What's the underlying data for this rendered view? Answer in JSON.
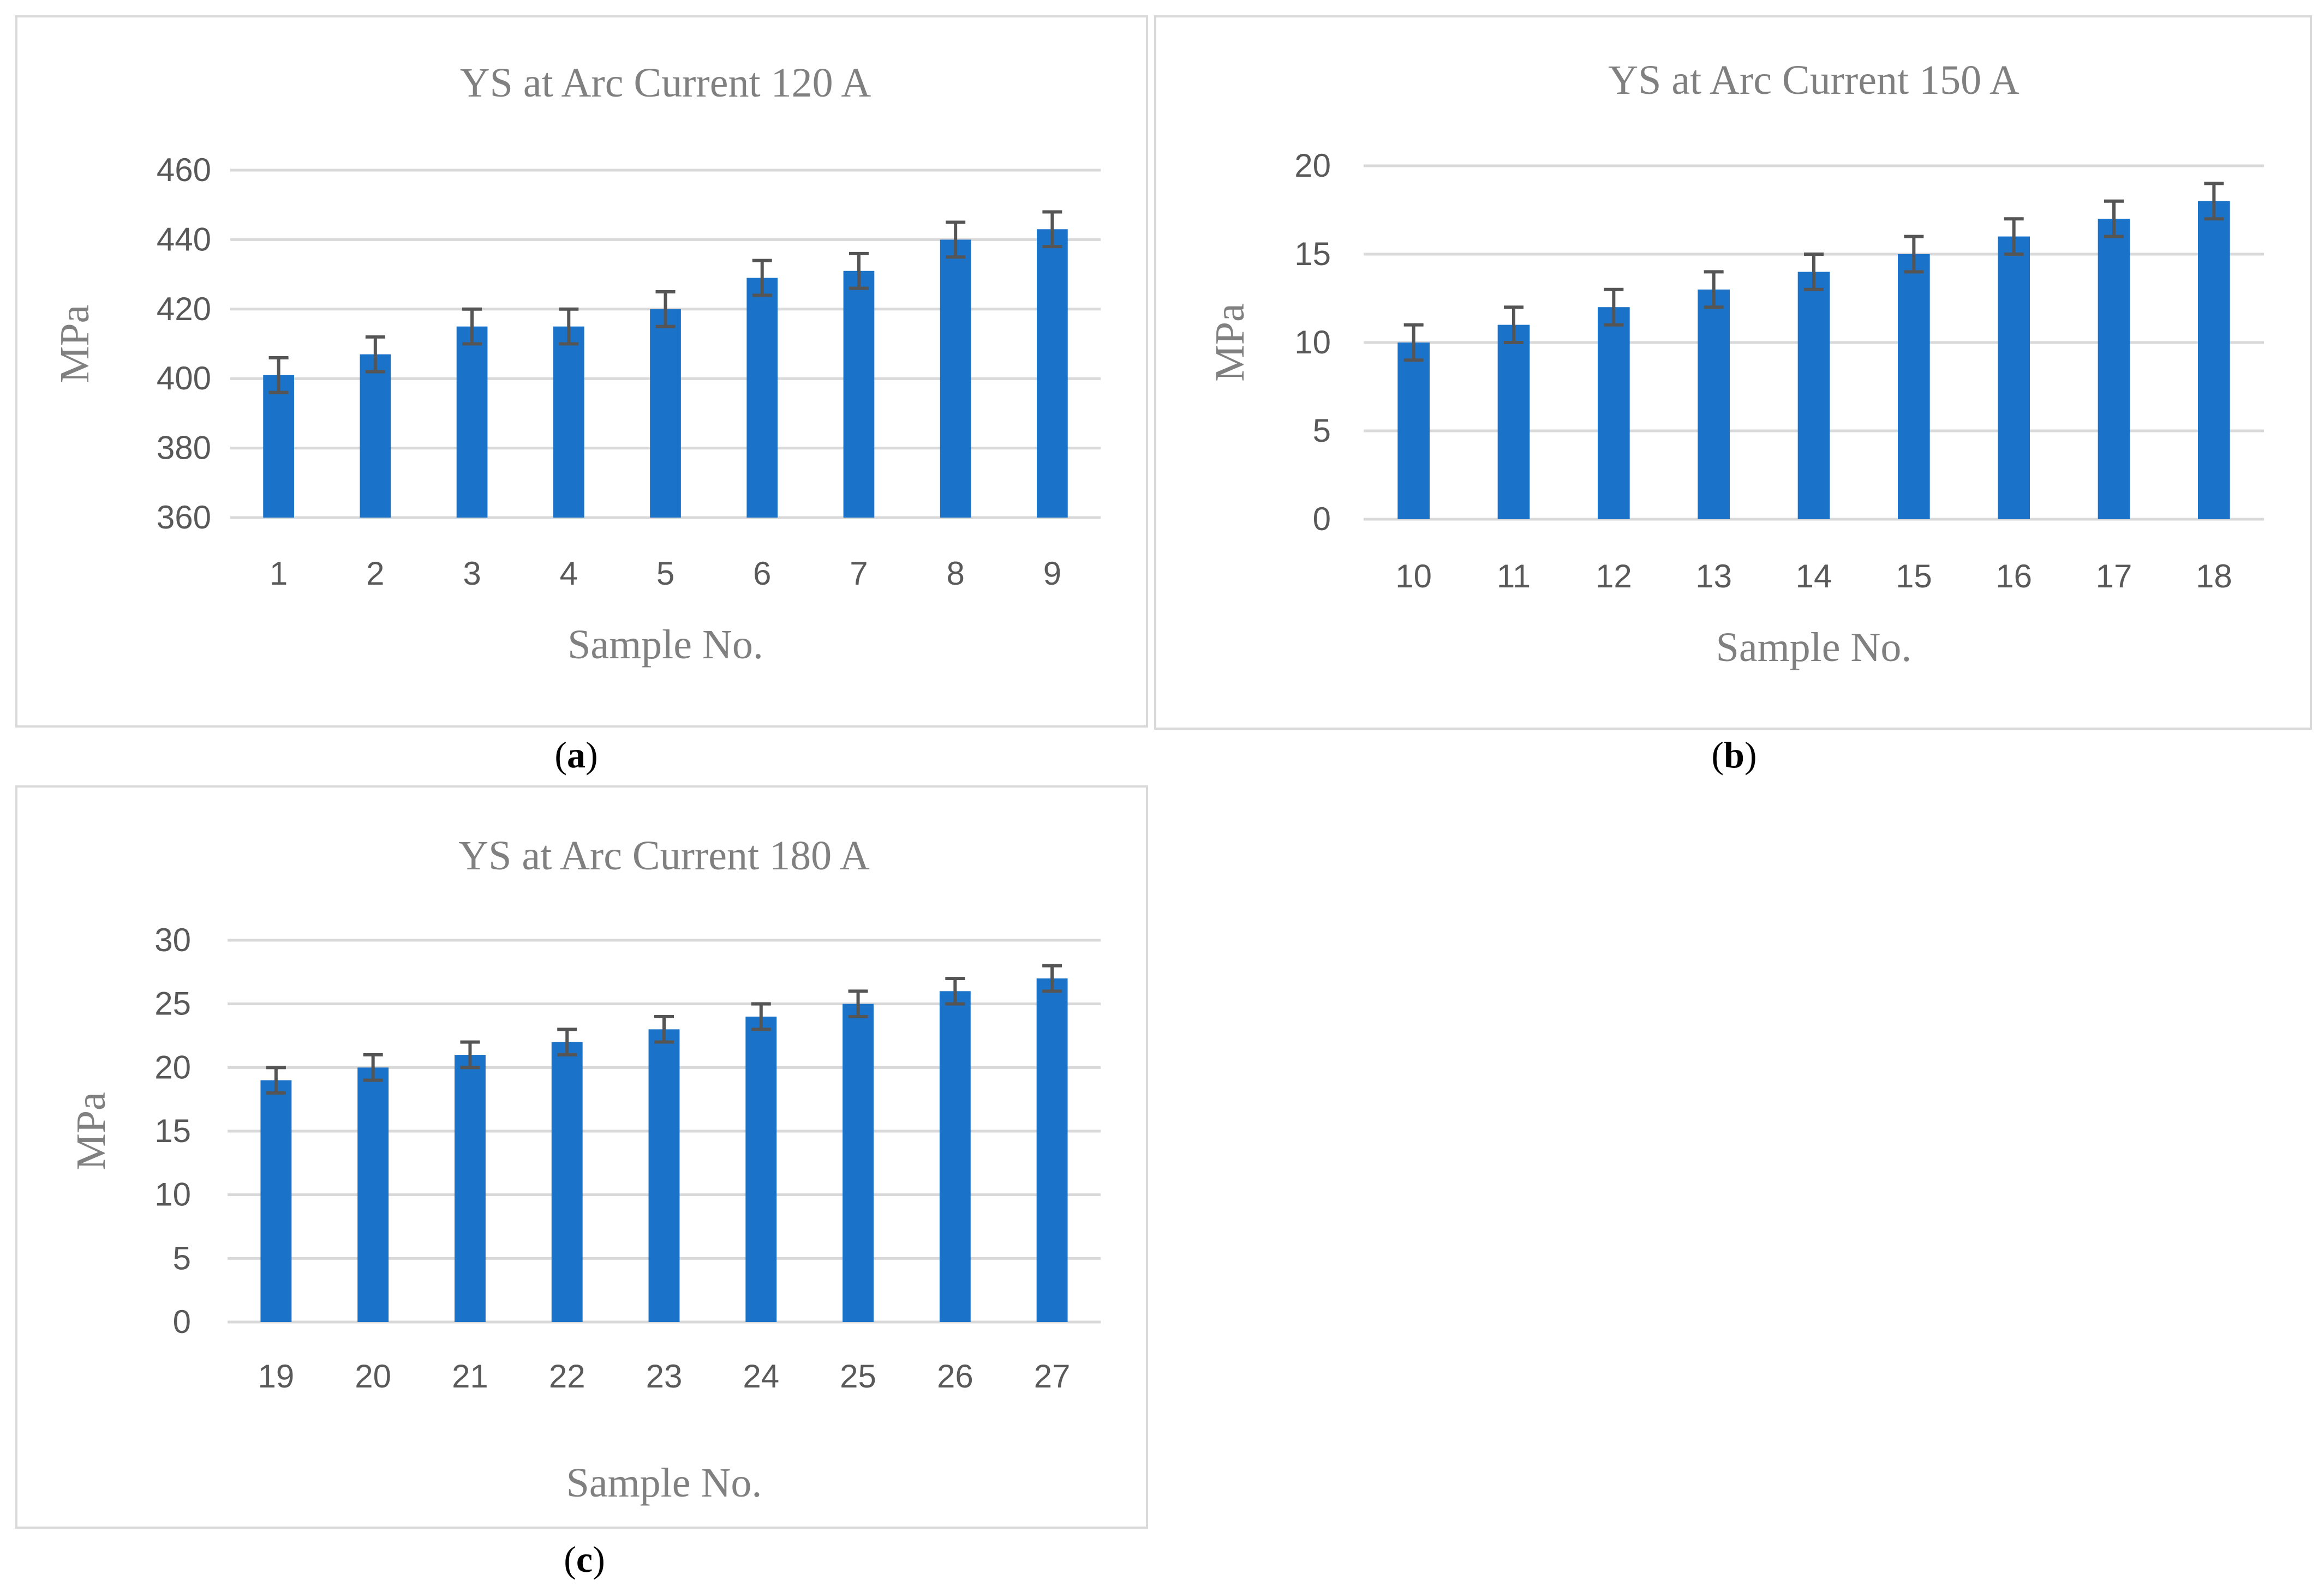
{
  "colors": {
    "bar": "#1a73c8",
    "error_bar": "#555555",
    "grid": "#d9d9d9",
    "text": "#595959",
    "title": "#808080"
  },
  "chart_data": [
    {
      "id": "a",
      "type": "bar",
      "title": "YS at Arc Current 120 A",
      "xlabel": "Sample No.",
      "ylabel": "MPa",
      "panel_label": "a",
      "categories": [
        "1",
        "2",
        "3",
        "4",
        "5",
        "6",
        "7",
        "8",
        "9"
      ],
      "values": [
        401,
        407,
        415,
        415,
        420,
        429,
        431,
        440,
        443
      ],
      "error": 5,
      "ylim": [
        360,
        460
      ],
      "yticks": [
        360,
        380,
        400,
        420,
        440,
        460
      ],
      "grid": true
    },
    {
      "id": "b",
      "type": "bar",
      "title": "YS at Arc Current 150 A",
      "xlabel": "Sample No.",
      "ylabel": "MPa",
      "panel_label": "b",
      "categories": [
        "10",
        "11",
        "12",
        "13",
        "14",
        "15",
        "16",
        "17",
        "18"
      ],
      "values": [
        10,
        11,
        12,
        13,
        14,
        15,
        16,
        17,
        18
      ],
      "error": 1,
      "ylim": [
        0,
        20
      ],
      "yticks": [
        0,
        5,
        10,
        15,
        20
      ],
      "grid": true
    },
    {
      "id": "c",
      "type": "bar",
      "title": "YS at Arc Current 180 A",
      "xlabel": "Sample No.",
      "ylabel": "MPa",
      "panel_label": "c",
      "categories": [
        "19",
        "20",
        "21",
        "22",
        "23",
        "24",
        "25",
        "26",
        "27"
      ],
      "values": [
        19,
        20,
        21,
        22,
        23,
        24,
        25,
        26,
        27
      ],
      "error": 1,
      "ylim": [
        0,
        30
      ],
      "yticks": [
        0,
        5,
        10,
        15,
        20,
        25,
        30
      ],
      "grid": true
    }
  ]
}
